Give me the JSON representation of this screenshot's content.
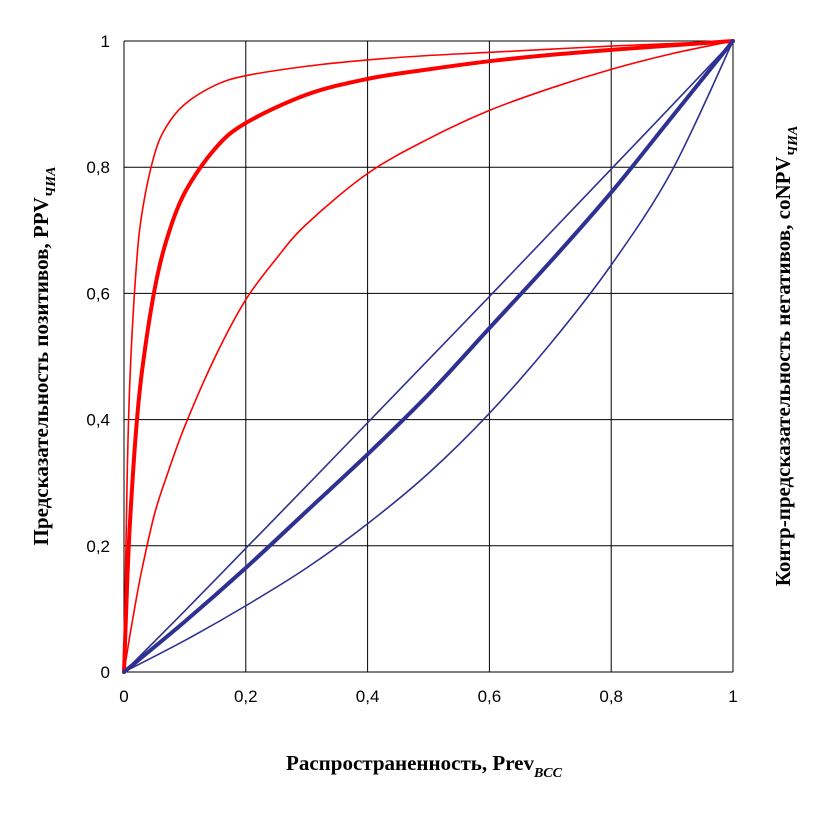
{
  "chart_data": {
    "type": "line",
    "title": "",
    "xlabel": {
      "main": "Распространенность,  Prev",
      "sub": "BCC"
    },
    "ylabel_left": {
      "main": "Предсказательность позитивов, PPV",
      "sub": "ЧИА"
    },
    "ylabel_right": {
      "main": "Контр-предсказательность негативов, coNPV",
      "sub": "ЧИА"
    },
    "xlim": [
      0,
      1
    ],
    "ylim": [
      0,
      1
    ],
    "xticks": [
      0,
      0.2,
      0.4,
      0.6,
      0.8,
      1
    ],
    "yticks": [
      0,
      0.2,
      0.4,
      0.6,
      0.8,
      1
    ],
    "xtick_labels": [
      "0",
      "0,2",
      "0,4",
      "0,6",
      "0,8",
      "1"
    ],
    "ytick_labels": [
      "0",
      "0,2",
      "0,4",
      "0,6",
      "0,8",
      "1"
    ],
    "grid": true,
    "legend": "none",
    "series": [
      {
        "group": "PPV",
        "color": "#ff0000",
        "weight": "thin",
        "x": [
          0,
          0.005,
          0.01,
          0.02,
          0.03,
          0.05,
          0.07,
          0.1,
          0.15,
          0.2,
          0.3,
          0.4,
          0.5,
          0.6,
          0.7,
          0.8,
          0.9,
          1
        ],
        "y": [
          0,
          0.3,
          0.47,
          0.64,
          0.73,
          0.82,
          0.865,
          0.9,
          0.93,
          0.945,
          0.96,
          0.97,
          0.977,
          0.982,
          0.987,
          0.992,
          0.996,
          1
        ]
      },
      {
        "group": "PPV",
        "color": "#ff0000",
        "weight": "thick",
        "x": [
          0,
          0.005,
          0.01,
          0.02,
          0.03,
          0.05,
          0.07,
          0.1,
          0.15,
          0.2,
          0.3,
          0.4,
          0.5,
          0.6,
          0.7,
          0.8,
          0.9,
          1
        ],
        "y": [
          0,
          0.135,
          0.24,
          0.385,
          0.48,
          0.605,
          0.685,
          0.76,
          0.83,
          0.87,
          0.915,
          0.94,
          0.955,
          0.968,
          0.978,
          0.986,
          0.993,
          1
        ]
      },
      {
        "group": "PPV",
        "color": "#ff0000",
        "weight": "thin",
        "x": [
          0,
          0.01,
          0.02,
          0.03,
          0.05,
          0.07,
          0.1,
          0.15,
          0.2,
          0.25,
          0.3,
          0.4,
          0.5,
          0.6,
          0.7,
          0.8,
          0.9,
          1
        ],
        "y": [
          0,
          0.06,
          0.115,
          0.165,
          0.25,
          0.31,
          0.39,
          0.5,
          0.59,
          0.655,
          0.71,
          0.79,
          0.845,
          0.89,
          0.925,
          0.955,
          0.98,
          1
        ]
      },
      {
        "group": "coNPV",
        "color": "#2e3192",
        "weight": "thin",
        "x": [
          0,
          0.1,
          0.2,
          0.3,
          0.4,
          0.5,
          0.6,
          0.7,
          0.8,
          0.9,
          1
        ],
        "y": [
          0,
          0.097,
          0.196,
          0.295,
          0.395,
          0.495,
          0.595,
          0.696,
          0.797,
          0.898,
          1
        ]
      },
      {
        "group": "coNPV",
        "color": "#2e3192",
        "weight": "thick",
        "x": [
          0,
          0.1,
          0.2,
          0.3,
          0.4,
          0.5,
          0.6,
          0.7,
          0.8,
          0.9,
          1
        ],
        "y": [
          0,
          0.08,
          0.165,
          0.255,
          0.345,
          0.44,
          0.545,
          0.65,
          0.76,
          0.88,
          1
        ]
      },
      {
        "group": "coNPV",
        "color": "#2e3192",
        "weight": "thin",
        "x": [
          0,
          0.1,
          0.2,
          0.3,
          0.4,
          0.5,
          0.6,
          0.7,
          0.8,
          0.9,
          1
        ],
        "y": [
          0,
          0.05,
          0.105,
          0.165,
          0.235,
          0.315,
          0.41,
          0.52,
          0.645,
          0.795,
          1
        ]
      }
    ]
  }
}
